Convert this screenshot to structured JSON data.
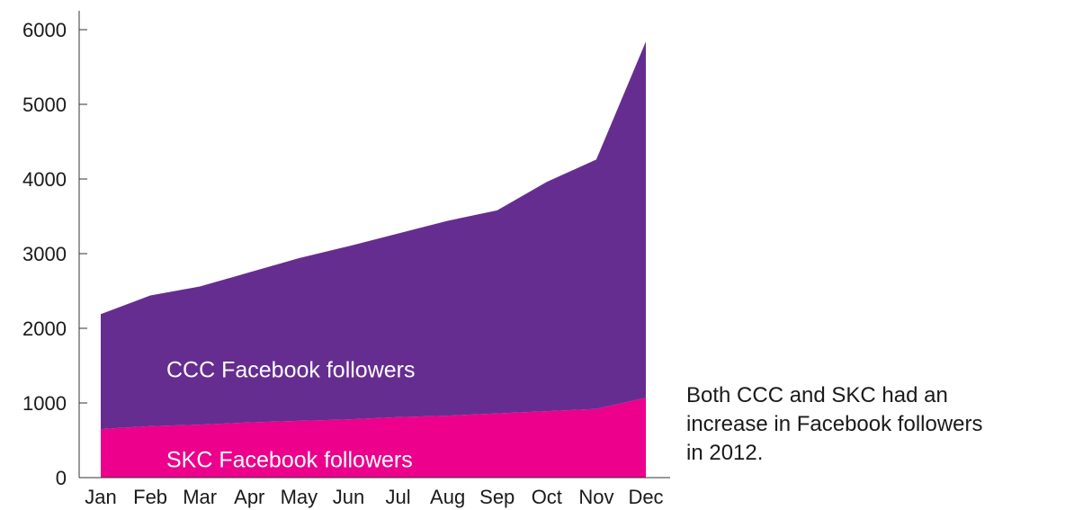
{
  "chart_data": {
    "type": "area",
    "stacked": true,
    "categories": [
      "Jan",
      "Feb",
      "Mar",
      "Apr",
      "May",
      "Jun",
      "Jul",
      "Aug",
      "Sep",
      "Oct",
      "Nov",
      "Dec"
    ],
    "ylim": [
      0,
      6000
    ],
    "yticks": [
      0,
      1000,
      2000,
      3000,
      4000,
      5000,
      6000
    ],
    "grid": false,
    "series": [
      {
        "name": "SKC Facebook followers",
        "color": "#EC008C",
        "values": [
          650,
          690,
          710,
          740,
          760,
          780,
          810,
          830,
          860,
          890,
          920,
          1070
        ]
      },
      {
        "name": "CCC Facebook followers",
        "color": "#662D91",
        "values": [
          1540,
          1750,
          1850,
          2010,
          2180,
          2320,
          2460,
          2610,
          2720,
          3070,
          3340,
          4770
        ]
      }
    ],
    "annotation": "Both CCC and SKC had an increase in Facebook followers in 2012."
  },
  "annotation_lines": [
    "Both CCC and SKC had an",
    "increase in Facebook followers",
    "in 2012."
  ]
}
